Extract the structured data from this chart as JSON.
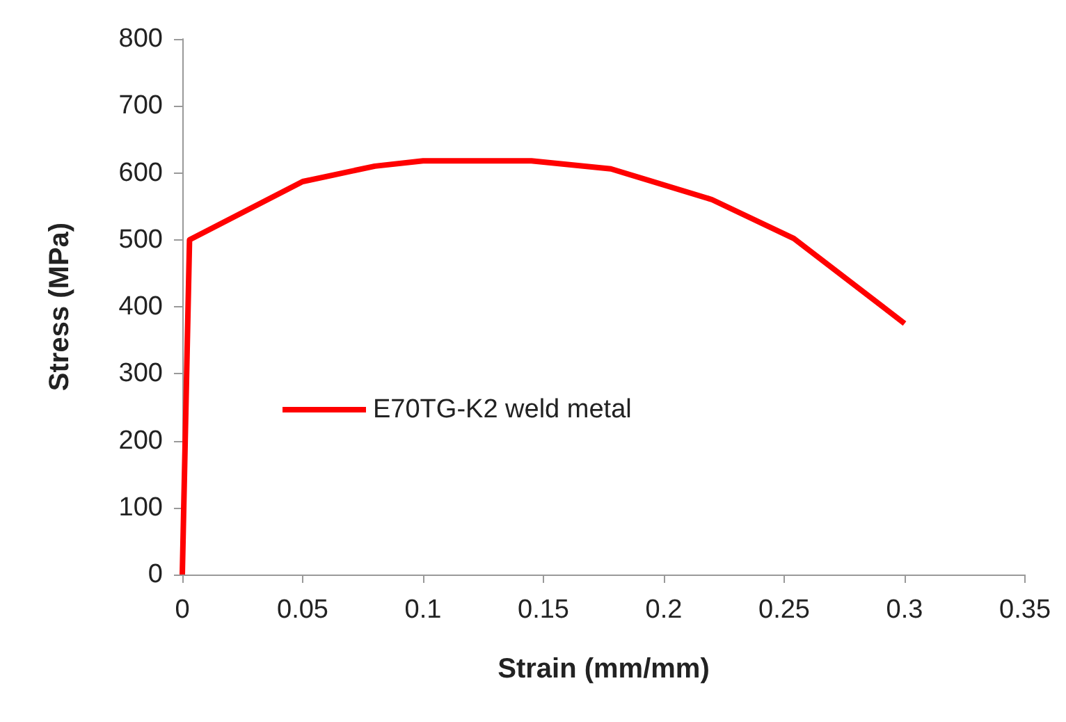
{
  "chart_data": {
    "type": "line",
    "xlabel": "Strain (mm/mm)",
    "ylabel": "Stress (MPa)",
    "x": [
      0,
      0.003,
      0.05,
      0.08,
      0.1,
      0.145,
      0.178,
      0.22,
      0.254,
      0.3
    ],
    "series": [
      {
        "name": "E70TG-K2 weld metal",
        "color": "#ff0000",
        "values": [
          0,
          500,
          587,
          610,
          618,
          618,
          606,
          560,
          502,
          375
        ]
      }
    ],
    "xlim": [
      0,
      0.35
    ],
    "xticks": [
      0,
      0.05,
      0.1,
      0.15,
      0.2,
      0.25,
      0.3,
      0.35
    ],
    "ylim": [
      0,
      800
    ],
    "yticks": [
      0,
      100,
      200,
      300,
      400,
      500,
      600,
      700,
      800
    ],
    "grid": false,
    "legend": "left",
    "marker": "none",
    "line_style": "solid"
  }
}
